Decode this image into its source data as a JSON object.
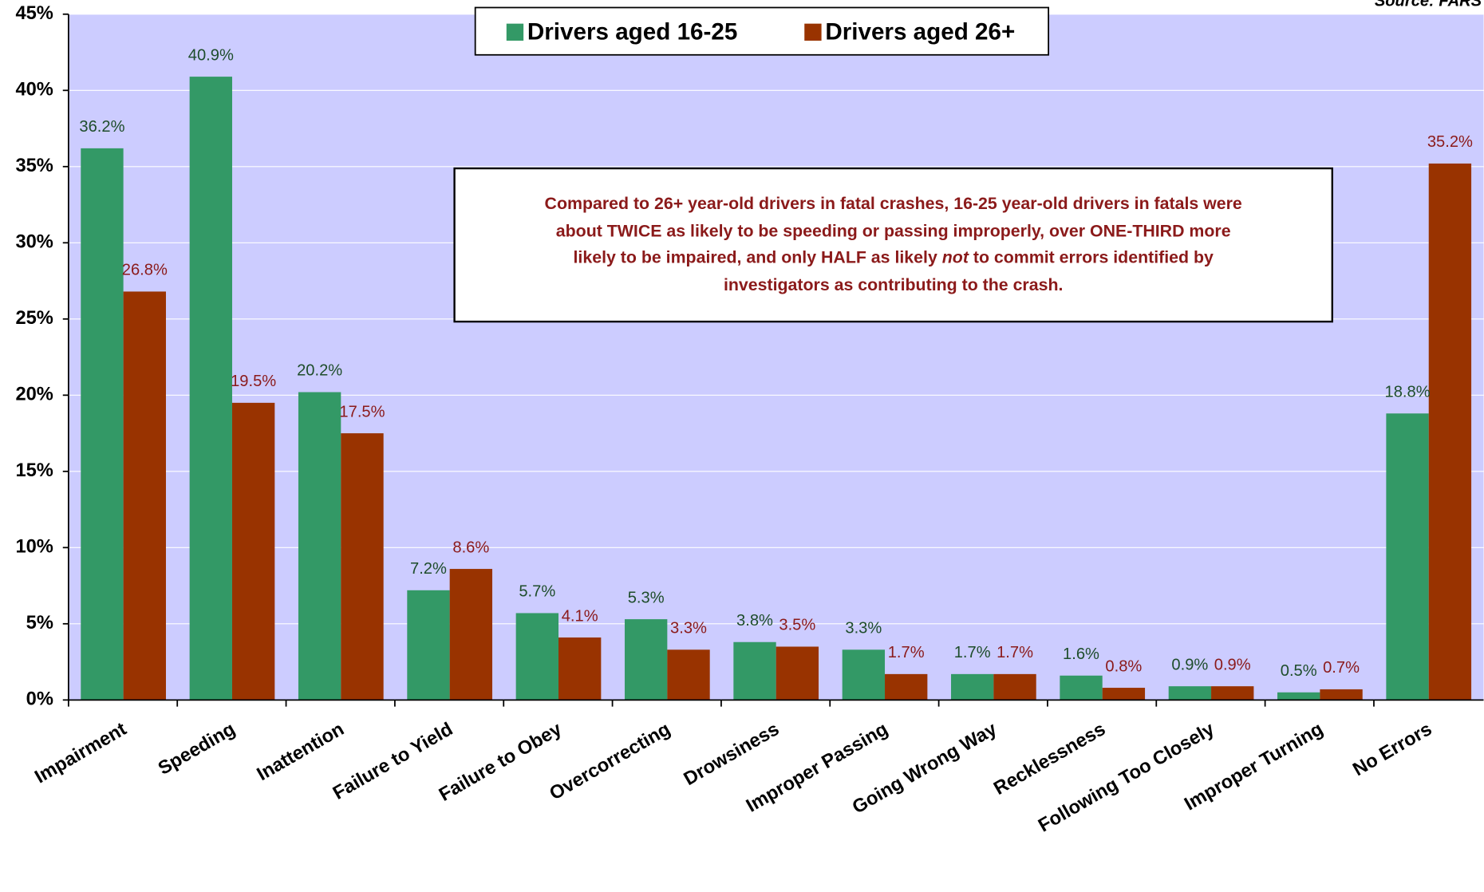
{
  "chart_data": {
    "type": "bar",
    "source": "Source: FARS",
    "categories": [
      "Impairment",
      "Speeding",
      "Inattention",
      "Failure to Yield",
      "Failure to Obey",
      "Overcorrecting",
      "Drowsiness",
      "Improper Passing",
      "Going Wrong Way",
      "Recklessness",
      "Following Too Closely",
      "Improper Turning",
      "No Errors"
    ],
    "series": [
      {
        "name": "Drivers aged 16-25",
        "color": "#339966",
        "label_color": "#1e4d2b",
        "values": [
          36.2,
          40.9,
          20.2,
          7.2,
          5.7,
          5.3,
          3.8,
          3.3,
          1.7,
          1.6,
          0.9,
          0.5,
          18.8
        ],
        "value_labels": [
          "36.2%",
          "40.9%",
          "20.2%",
          "7.2%",
          "5.7%",
          "5.3%",
          "3.8%",
          "3.3%",
          "1.7%",
          "1.6%",
          "0.9%",
          "0.5%",
          "18.8%"
        ]
      },
      {
        "name": "Drivers aged 26+",
        "color": "#993300",
        "label_color": "#8b1a1a",
        "values": [
          26.8,
          19.5,
          17.5,
          8.6,
          4.1,
          3.3,
          3.5,
          1.7,
          1.7,
          0.8,
          0.9,
          0.7,
          35.2
        ],
        "value_labels": [
          "26.8%",
          "19.5%",
          "17.5%",
          "8.6%",
          "4.1%",
          "3.3%",
          "3.5%",
          "1.7%",
          "1.7%",
          "0.8%",
          "0.9%",
          "0.7%",
          "35.2%"
        ]
      }
    ],
    "ylim": [
      0,
      45
    ],
    "yticks": [
      {
        "value": 0,
        "label": "0%"
      },
      {
        "value": 5,
        "label": "5%"
      },
      {
        "value": 10,
        "label": "10%"
      },
      {
        "value": 15,
        "label": "15%"
      },
      {
        "value": 20,
        "label": "20%"
      },
      {
        "value": 25,
        "label": "25%"
      },
      {
        "value": 30,
        "label": "30%"
      },
      {
        "value": 35,
        "label": "35%"
      },
      {
        "value": 40,
        "label": "40%"
      },
      {
        "value": 45,
        "label": "45%"
      }
    ],
    "grid": true,
    "background": "#ccccff",
    "legend": "top",
    "annotation": [
      [
        "Compared to 26+ year-old drivers in fatal crashes, 16-25 year-old drivers in fatals were"
      ],
      [
        "about TWICE as likely to be speeding or passing improperly,  over ONE-THIRD more"
      ],
      [
        "likely to be impaired, and only HALF as likely ",
        "not",
        " to commit errors identified by"
      ],
      [
        "investigators as contributing to the crash."
      ]
    ]
  }
}
